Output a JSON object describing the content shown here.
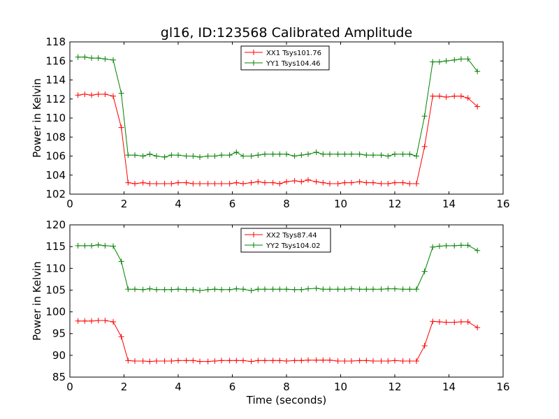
{
  "figure_title": "gl16, ID:123568 Calibrated Amplitude",
  "chart_data": [
    {
      "type": "line",
      "title": "gl16, ID:123568 Calibrated Amplitude",
      "xlabel": "",
      "ylabel": "Power in Kelvin",
      "xlim": [
        0,
        16
      ],
      "ylim": [
        102,
        118
      ],
      "xticks": [
        0,
        2,
        4,
        6,
        8,
        10,
        12,
        14,
        16
      ],
      "yticks": [
        102,
        104,
        106,
        108,
        110,
        112,
        114,
        116,
        118
      ],
      "grid": false,
      "legend_position": "top-center",
      "marker": "+",
      "x": [
        0.3,
        0.55,
        0.8,
        1.05,
        1.3,
        1.6,
        1.9,
        2.15,
        2.4,
        2.7,
        2.95,
        3.2,
        3.5,
        3.75,
        4.0,
        4.3,
        4.55,
        4.8,
        5.1,
        5.35,
        5.6,
        5.9,
        6.15,
        6.4,
        6.7,
        6.95,
        7.2,
        7.5,
        7.75,
        8.0,
        8.3,
        8.55,
        8.8,
        9.1,
        9.35,
        9.6,
        9.9,
        10.15,
        10.4,
        10.7,
        10.95,
        11.2,
        11.5,
        11.75,
        12.0,
        12.3,
        12.55,
        12.8,
        13.1,
        13.4,
        13.65,
        13.9,
        14.2,
        14.45,
        14.7,
        15.05
      ],
      "series": [
        {
          "name": "XX1 Tsys101.76",
          "color": "#ff0000",
          "values": [
            112.4,
            112.5,
            112.4,
            112.5,
            112.5,
            112.3,
            109.0,
            103.2,
            103.1,
            103.2,
            103.1,
            103.1,
            103.1,
            103.1,
            103.2,
            103.2,
            103.1,
            103.1,
            103.1,
            103.1,
            103.1,
            103.1,
            103.2,
            103.1,
            103.2,
            103.3,
            103.2,
            103.2,
            103.1,
            103.3,
            103.4,
            103.3,
            103.5,
            103.3,
            103.2,
            103.1,
            103.1,
            103.2,
            103.2,
            103.3,
            103.2,
            103.2,
            103.1,
            103.1,
            103.2,
            103.2,
            103.1,
            103.1,
            107.0,
            112.3,
            112.3,
            112.2,
            112.3,
            112.3,
            112.1,
            111.2
          ]
        },
        {
          "name": "YY1 Tsys104.46",
          "color": "#008000",
          "values": [
            116.4,
            116.4,
            116.3,
            116.3,
            116.2,
            116.1,
            112.6,
            106.1,
            106.1,
            106.0,
            106.2,
            106.0,
            105.9,
            106.1,
            106.1,
            106.0,
            106.0,
            105.9,
            106.0,
            106.0,
            106.1,
            106.1,
            106.4,
            106.0,
            106.0,
            106.1,
            106.2,
            106.2,
            106.2,
            106.2,
            106.0,
            106.1,
            106.2,
            106.4,
            106.2,
            106.2,
            106.2,
            106.2,
            106.2,
            106.2,
            106.1,
            106.1,
            106.1,
            106.0,
            106.2,
            106.2,
            106.2,
            106.0,
            110.2,
            115.9,
            115.9,
            116.0,
            116.1,
            116.2,
            116.2,
            114.9
          ]
        }
      ]
    },
    {
      "type": "line",
      "title": "",
      "xlabel": "Time (seconds)",
      "ylabel": "Power in Kelvin",
      "xlim": [
        0,
        16
      ],
      "ylim": [
        85,
        120
      ],
      "xticks": [
        0,
        2,
        4,
        6,
        8,
        10,
        12,
        14,
        16
      ],
      "yticks": [
        85,
        90,
        95,
        100,
        105,
        110,
        115,
        120
      ],
      "grid": false,
      "legend_position": "top-center",
      "marker": "+",
      "x": [
        0.3,
        0.55,
        0.8,
        1.05,
        1.3,
        1.6,
        1.9,
        2.15,
        2.4,
        2.7,
        2.95,
        3.2,
        3.5,
        3.75,
        4.0,
        4.3,
        4.55,
        4.8,
        5.1,
        5.35,
        5.6,
        5.9,
        6.15,
        6.4,
        6.7,
        6.95,
        7.2,
        7.5,
        7.75,
        8.0,
        8.3,
        8.55,
        8.8,
        9.1,
        9.35,
        9.6,
        9.9,
        10.15,
        10.4,
        10.7,
        10.95,
        11.2,
        11.5,
        11.75,
        12.0,
        12.3,
        12.55,
        12.8,
        13.1,
        13.4,
        13.65,
        13.9,
        14.2,
        14.45,
        14.7,
        15.05
      ],
      "series": [
        {
          "name": "XX2 Tsys87.44",
          "color": "#ff0000",
          "values": [
            97.9,
            97.9,
            97.9,
            98.0,
            98.0,
            97.7,
            94.3,
            88.8,
            88.7,
            88.7,
            88.6,
            88.7,
            88.7,
            88.7,
            88.8,
            88.8,
            88.8,
            88.6,
            88.6,
            88.7,
            88.8,
            88.8,
            88.8,
            88.8,
            88.6,
            88.8,
            88.8,
            88.8,
            88.8,
            88.7,
            88.8,
            88.8,
            88.9,
            88.9,
            88.9,
            88.9,
            88.7,
            88.7,
            88.7,
            88.8,
            88.8,
            88.7,
            88.7,
            88.7,
            88.8,
            88.7,
            88.7,
            88.7,
            92.2,
            97.8,
            97.7,
            97.6,
            97.6,
            97.7,
            97.7,
            96.4
          ]
        },
        {
          "name": "YY2 Tsys104.02",
          "color": "#008000",
          "values": [
            115.2,
            115.2,
            115.2,
            115.4,
            115.2,
            115.1,
            111.6,
            105.2,
            105.2,
            105.1,
            105.3,
            105.1,
            105.1,
            105.1,
            105.2,
            105.1,
            105.1,
            104.9,
            105.1,
            105.2,
            105.1,
            105.1,
            105.3,
            105.2,
            104.9,
            105.2,
            105.2,
            105.2,
            105.2,
            105.2,
            105.1,
            105.1,
            105.3,
            105.4,
            105.2,
            105.2,
            105.2,
            105.2,
            105.3,
            105.2,
            105.2,
            105.2,
            105.2,
            105.3,
            105.3,
            105.2,
            105.2,
            105.2,
            109.3,
            114.9,
            115.1,
            115.2,
            115.2,
            115.3,
            115.3,
            114.1
          ]
        }
      ]
    }
  ]
}
